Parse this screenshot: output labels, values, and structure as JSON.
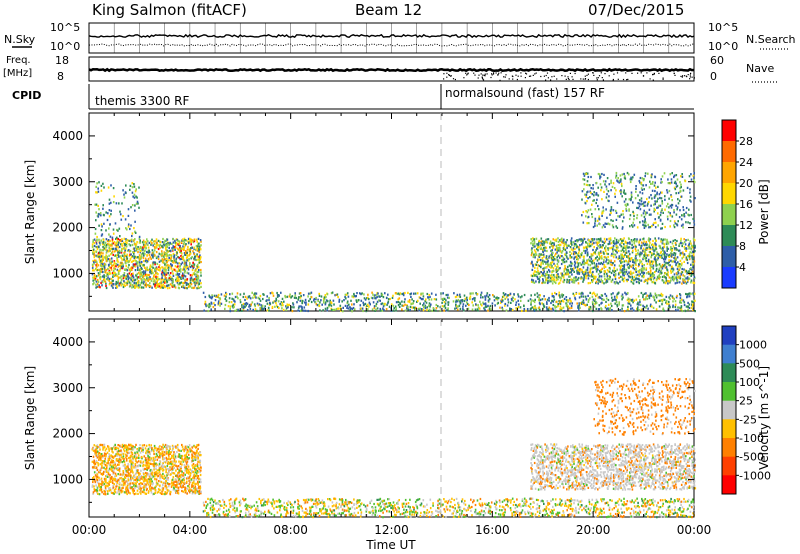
{
  "header": {
    "station": "King Salmon (fitACF)",
    "beam": "Beam 12",
    "date": "07/Dec/2015"
  },
  "strips": {
    "nsky_label": "N.Sky",
    "nsearch_label": "N.Search",
    "freq_label": "Freq.",
    "freq_unit": "[MHz]",
    "nave_label": "Nave",
    "cpid_label": "CPID",
    "noise_ticks": [
      "10^5",
      "10^0"
    ],
    "freq_ticks": [
      "18",
      "8"
    ],
    "nave_ticks": [
      "60",
      "0"
    ],
    "cpid_segments": [
      {
        "label": "themis 3300 RF",
        "start_hour": 0
      },
      {
        "label": "normalsound (fast) 157 RF",
        "start_hour": 14
      }
    ]
  },
  "chart_data": [
    {
      "type": "heatmap",
      "title": "",
      "xlabel": "Time UT",
      "ylabel": "Slant Range [km]",
      "xticks": [
        "00:00",
        "04:00",
        "08:00",
        "12:00",
        "16:00",
        "20:00",
        "00:00"
      ],
      "yticks": [
        "1000",
        "2000",
        "3000",
        "4000"
      ],
      "xlim_hours": [
        0,
        24
      ],
      "ylim_km": [
        180,
        4500
      ],
      "colorbar": {
        "label": "Power [dB]",
        "ticks": [
          "28",
          "24",
          "20",
          "16",
          "12",
          "8",
          "4"
        ],
        "colors": [
          "#ff0000",
          "#ff6a00",
          "#ffa500",
          "#ffd700",
          "#8fd14f",
          "#2e8b57",
          "#2e5ea8",
          "#1a3cff"
        ]
      },
      "regions": [
        {
          "name": "early-band",
          "t0": 0.1,
          "t1": 4.4,
          "r0": 700,
          "r1": 1800,
          "density": 0.5,
          "mix": [
            0.05,
            0.15,
            0.25,
            0.25,
            0.15,
            0.15
          ]
        },
        {
          "name": "early-upper",
          "t0": 0.2,
          "t1": 2.0,
          "r0": 1800,
          "r1": 3000,
          "density": 0.1,
          "mix": [
            0,
            0,
            0.1,
            0.2,
            0.3,
            0.4
          ]
        },
        {
          "name": "low-range",
          "t0": 4.5,
          "t1": 24,
          "r0": 200,
          "r1": 600,
          "density": 0.25,
          "mix": [
            0,
            0.05,
            0.15,
            0.2,
            0.3,
            0.3
          ]
        },
        {
          "name": "late-arc",
          "t0": 17.5,
          "t1": 24,
          "r0": 800,
          "r1": 1800,
          "density": 0.4,
          "mix": [
            0,
            0.05,
            0.2,
            0.25,
            0.25,
            0.25
          ]
        },
        {
          "name": "late-upper",
          "t0": 19.5,
          "t1": 24,
          "r0": 2000,
          "r1": 3200,
          "density": 0.15,
          "mix": [
            0,
            0,
            0.1,
            0.2,
            0.3,
            0.4
          ]
        }
      ]
    },
    {
      "type": "heatmap",
      "title": "",
      "xlabel": "Time UT",
      "ylabel": "Slant Range [km]",
      "xticks": [
        "00:00",
        "04:00",
        "08:00",
        "12:00",
        "16:00",
        "20:00",
        "00:00"
      ],
      "yticks": [
        "1000",
        "2000",
        "3000",
        "4000"
      ],
      "xlim_hours": [
        0,
        24
      ],
      "ylim_km": [
        180,
        4500
      ],
      "colorbar": {
        "label": "Velocity [m s^-1]",
        "ticks": [
          "1000",
          "500",
          "100",
          "25",
          "-25",
          "-100",
          "-500",
          "-1000"
        ],
        "colors": [
          "#2040c0",
          "#3f7fd0",
          "#2e8b57",
          "#50c030",
          "#c8c8c8",
          "#ffc000",
          "#ff8000",
          "#ff4000",
          "#ff0000"
        ]
      },
      "regions": [
        {
          "name": "early-band",
          "t0": 0.1,
          "t1": 4.4,
          "r0": 700,
          "r1": 1800,
          "density": 0.5,
          "mix": [
            0,
            0,
            0.1,
            0.4,
            0.2,
            0.3
          ]
        },
        {
          "name": "low-range",
          "t0": 4.5,
          "t1": 24,
          "r0": 200,
          "r1": 600,
          "density": 0.25,
          "mix": [
            0,
            0.05,
            0.3,
            0.3,
            0.2,
            0.15
          ]
        },
        {
          "name": "late-arc",
          "t0": 17.5,
          "t1": 24,
          "r0": 800,
          "r1": 1800,
          "density": 0.4,
          "mix": [
            0,
            0,
            0.05,
            0.05,
            0.7,
            0.2
          ]
        },
        {
          "name": "late-upper",
          "t0": 20,
          "t1": 24,
          "r0": 2000,
          "r1": 3200,
          "density": 0.15,
          "mix": [
            0,
            0,
            0,
            0,
            0.2,
            0.8
          ]
        }
      ]
    }
  ]
}
